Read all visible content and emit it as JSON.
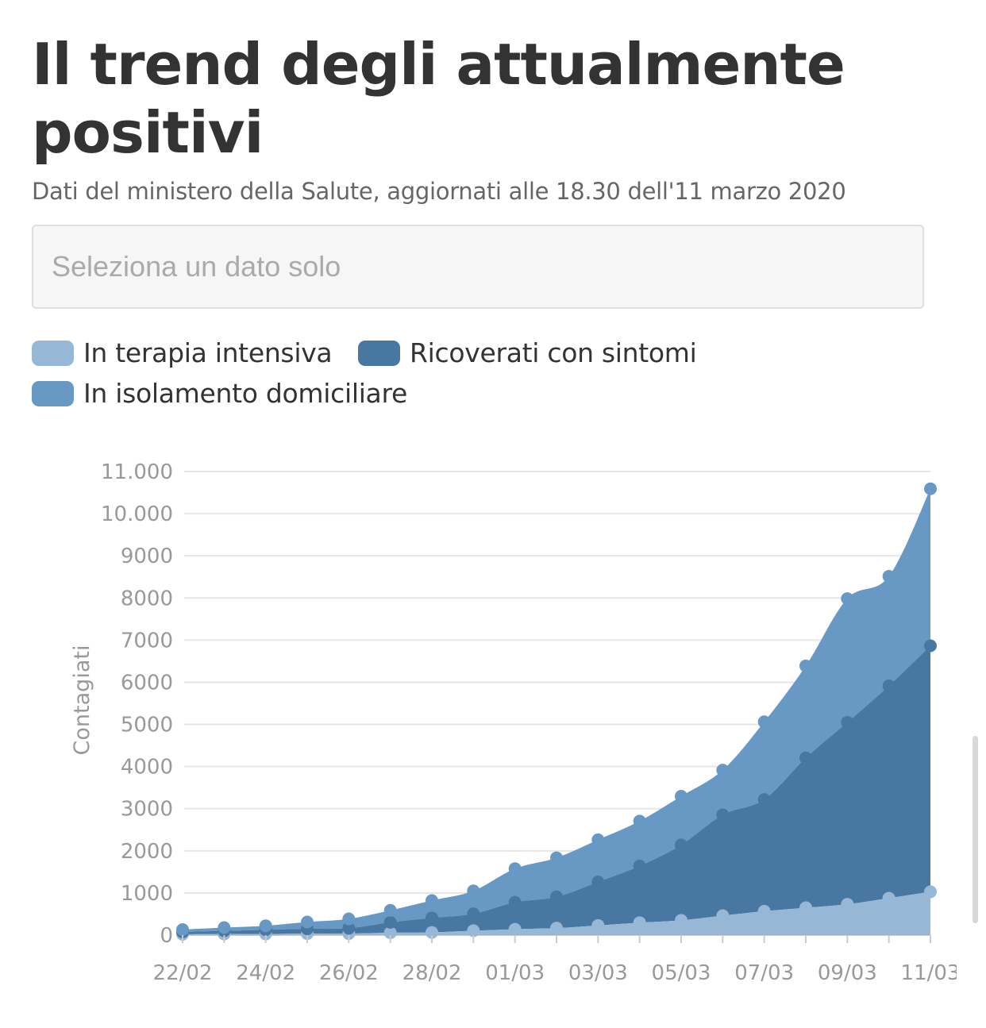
{
  "header": {
    "title": "Il trend degli attualmente positivi",
    "subtitle": "Dati del ministero della Salute, aggiornati alle 18.30 dell'11 marzo 2020"
  },
  "filter": {
    "placeholder": "Seleziona un dato solo"
  },
  "chart_data": {
    "type": "area",
    "stacked": true,
    "ylabel": "Contagiati",
    "xlabel": "",
    "ylim": [
      0,
      11000
    ],
    "y_ticks": [
      0,
      1000,
      2000,
      3000,
      4000,
      5000,
      6000,
      7000,
      8000,
      9000,
      10000,
      11000
    ],
    "y_tick_labels": [
      "0",
      "1000",
      "2000",
      "3000",
      "4000",
      "5000",
      "6000",
      "7000",
      "8000",
      "9000",
      "10.000",
      "11.000"
    ],
    "x": [
      "22/02",
      "23/02",
      "24/02",
      "25/02",
      "26/02",
      "27/02",
      "28/02",
      "29/02",
      "01/03",
      "02/03",
      "03/03",
      "04/03",
      "05/03",
      "06/03",
      "07/03",
      "08/03",
      "09/03",
      "10/03",
      "11/03"
    ],
    "x_tick_labels": [
      "22/02",
      "24/02",
      "26/02",
      "28/02",
      "01/03",
      "03/03",
      "05/03",
      "07/03",
      "09/03",
      "11/03"
    ],
    "grid": true,
    "series": [
      {
        "name": "In terapia intensiva",
        "color": "#96b7d6",
        "values": [
          20,
          26,
          27,
          35,
          36,
          56,
          64,
          105,
          140,
          166,
          229,
          295,
          351,
          462,
          567,
          650,
          733,
          877,
          1028
        ]
      },
      {
        "name": "Ricoverati con sintomi",
        "color": "#4878a2",
        "values": [
          57,
          75,
          101,
          114,
          128,
          248,
          345,
          401,
          639,
          742,
          1034,
          1346,
          1790,
          2394,
          2651,
          3557,
          4316,
          5038,
          5838
        ]
      },
      {
        "name": "In isolamento domiciliare",
        "color": "#6899c4",
        "values": [
          55,
          78,
          94,
          162,
          221,
          284,
          412,
          543,
          798,
          927,
          1000,
          1065,
          1155,
          1060,
          1843,
          2180,
          2936,
          2599,
          3724
        ]
      }
    ]
  }
}
